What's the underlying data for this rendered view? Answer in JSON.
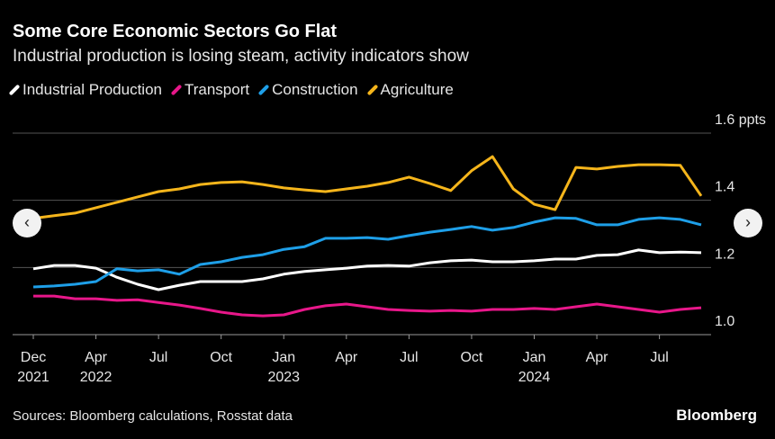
{
  "chart_data": {
    "type": "line",
    "title": "Some Core Economic Sectors Go Flat",
    "subtitle": "Industrial production is losing steam, activity indicators show",
    "source": "Sources: Bloomberg calculations, Rosstat data",
    "brand": "Bloomberg",
    "categories": [
      "Dec 2021",
      null,
      null,
      "Apr 2022",
      null,
      null,
      "Jul",
      null,
      null,
      "Oct",
      null,
      null,
      "Jan 2023",
      null,
      null,
      "Apr",
      null,
      null,
      "Jul",
      null,
      null,
      "Oct",
      null,
      null,
      "Jan 2024",
      null,
      null,
      "Apr",
      null,
      null,
      "Jul",
      null,
      null
    ],
    "ylim": [
      1.0,
      1.6
    ],
    "yticks": [
      {
        "value": 1.0,
        "label": "1.0"
      },
      {
        "value": 1.2,
        "label": "1.2"
      },
      {
        "value": 1.4,
        "label": "1.4"
      },
      {
        "value": 1.6,
        "label": "1.6 ppts"
      }
    ],
    "grid": true,
    "series": [
      {
        "name": "Industrial Production",
        "color": "#ffffff",
        "values": [
          1.196,
          1.206,
          1.206,
          1.198,
          1.171,
          1.15,
          1.134,
          1.147,
          1.158,
          1.158,
          1.158,
          1.166,
          1.18,
          1.188,
          1.193,
          1.198,
          1.204,
          1.206,
          1.204,
          1.214,
          1.22,
          1.222,
          1.217,
          1.217,
          1.22,
          1.225,
          1.225,
          1.236,
          1.238,
          1.252,
          1.244,
          1.246,
          1.244
        ]
      },
      {
        "name": "Transport",
        "color": "#e8178a",
        "values": [
          1.115,
          1.115,
          1.107,
          1.107,
          1.102,
          1.104,
          1.096,
          1.088,
          1.078,
          1.067,
          1.059,
          1.056,
          1.059,
          1.075,
          1.086,
          1.091,
          1.083,
          1.075,
          1.072,
          1.07,
          1.072,
          1.07,
          1.075,
          1.075,
          1.078,
          1.075,
          1.083,
          1.091,
          1.083,
          1.075,
          1.067,
          1.075,
          1.08
        ]
      },
      {
        "name": "Construction",
        "color": "#1e9fe8",
        "values": [
          1.142,
          1.145,
          1.15,
          1.158,
          1.196,
          1.19,
          1.193,
          1.18,
          1.209,
          1.217,
          1.23,
          1.238,
          1.254,
          1.262,
          1.287,
          1.287,
          1.289,
          1.284,
          1.295,
          1.305,
          1.313,
          1.322,
          1.311,
          1.319,
          1.335,
          1.348,
          1.346,
          1.327,
          1.327,
          1.343,
          1.348,
          1.343,
          1.327
        ]
      },
      {
        "name": "Agriculture",
        "color": "#f5b51b",
        "values": [
          1.346,
          1.354,
          1.362,
          1.378,
          1.394,
          1.41,
          1.426,
          1.434,
          1.447,
          1.453,
          1.455,
          1.447,
          1.437,
          1.431,
          1.426,
          1.434,
          1.442,
          1.453,
          1.469,
          1.45,
          1.429,
          1.488,
          1.53,
          1.434,
          1.388,
          1.372,
          1.498,
          1.493,
          1.501,
          1.506,
          1.506,
          1.504,
          1.413
        ]
      }
    ]
  }
}
